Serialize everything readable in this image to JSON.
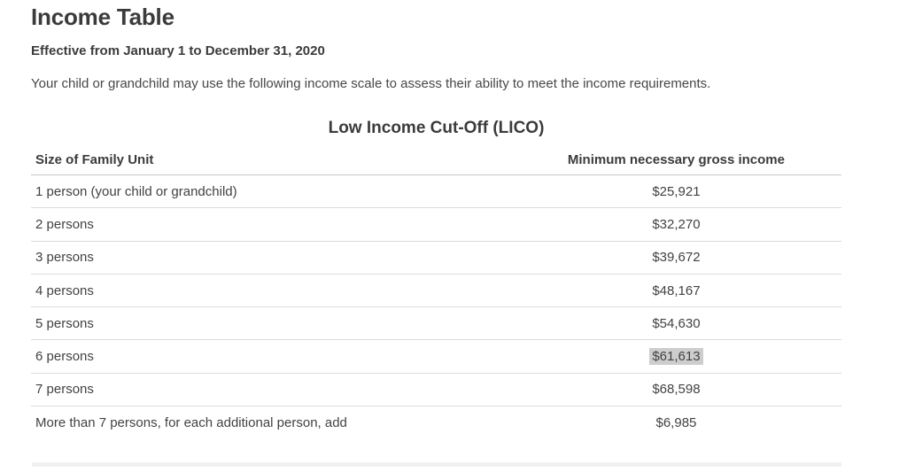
{
  "page": {
    "title": "Income Table",
    "effective_dates": "Effective from January 1 to December 31, 2020",
    "intro": "Your child or grandchild may use the following income scale to assess their ability to meet the income requirements."
  },
  "table": {
    "caption": "Low Income Cut-Off (LICO)",
    "columns": {
      "size": "Size of Family Unit",
      "income": "Minimum necessary gross income"
    },
    "rows": [
      {
        "size": "1 person (your child or grandchild)",
        "income": "$25,921",
        "highlighted": false
      },
      {
        "size": "2 persons",
        "income": "$32,270",
        "highlighted": false
      },
      {
        "size": "3 persons",
        "income": "$39,672",
        "highlighted": false
      },
      {
        "size": "4 persons",
        "income": "$48,167",
        "highlighted": false
      },
      {
        "size": "5 persons",
        "income": "$54,630",
        "highlighted": false
      },
      {
        "size": "6 persons",
        "income": "$61,613",
        "highlighted": true
      },
      {
        "size": "7 persons",
        "income": "$68,598",
        "highlighted": false
      },
      {
        "size": "More than 7 persons, for each additional person, add",
        "income": "$6,985",
        "highlighted": false
      }
    ]
  },
  "colors": {
    "heading_text": "#3b3b3b",
    "body_text": "#474747",
    "cell_text": "#424242",
    "header_border": "#c6c6c6",
    "row_border": "#dcdcdc",
    "selection_highlight": "#cdcdcd",
    "bottom_divider": "#f1f1f1"
  }
}
